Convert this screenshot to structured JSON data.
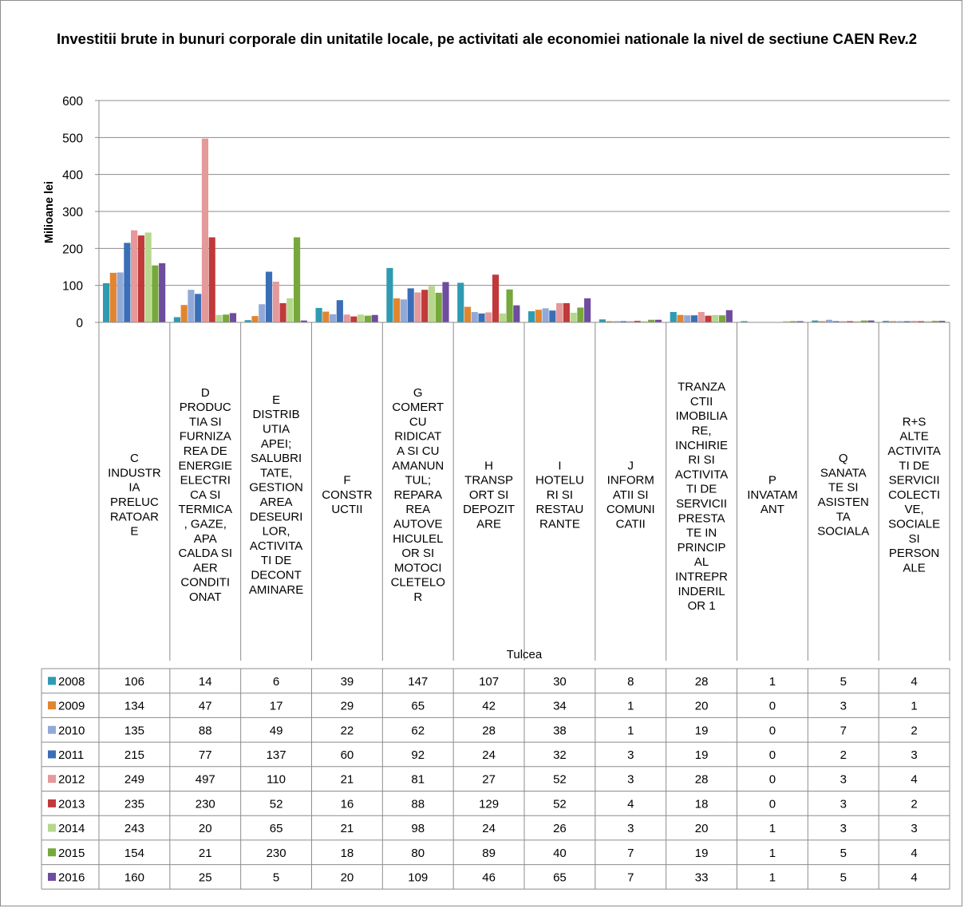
{
  "chart_data": {
    "type": "bar",
    "title": "Investitii brute in bunuri corporale din unitatile locale, pe activitati ale economiei nationale la nivel de sectiune CAEN Rev.2",
    "ylabel": "Milioane lei",
    "xlabel": "Tulcea",
    "ylim": [
      0,
      600
    ],
    "yticks": [
      0,
      100,
      200,
      300,
      400,
      500,
      600
    ],
    "grid": true,
    "legend": "data-table",
    "categories": [
      "C INDUSTRIA PRELUCRATOARE",
      "D PRODUCTIA SI FURNIZAREA DE ENERGIE ELECTRICA SI TERMICA, GAZE, APA CALDA SI AER CONDITIONAT",
      "E DISTRIBUTIA APEI; SALUBRITATE, GESTIONAREA DESEURILOR, ACTIVITATI DE DECONTAMINARE",
      "F CONSTRUCTII",
      "G COMERT CU RIDICATA SI CU AMANUNTUL; REPARAREA AUTOVEHICULELOR SI MOTOCICLETELOR",
      "H TRANSPORT SI DEPOZITARE",
      "I HOTELURI SI RESTAURANTE",
      "J INFORMATII SI COMUNICATII",
      "TRANZACTII IMOBILIARE, INCHIRIERI SI ACTIVITATI DE SERVICII PRESTATE IN PRINCIPAL INTREPRINDERILOR 1",
      "P INVATAMANT",
      "Q SANATATE SI ASISTENTA SOCIALA",
      "R+S ALTE ACTIVITATI DE SERVICII COLECTIVE, SOCIALE SI PERSONALE"
    ],
    "category_lines": [
      [
        "C",
        "INDUSTR",
        "IA",
        "PRELUC",
        "RATOAR",
        "E"
      ],
      [
        "D",
        "PRODUC",
        "TIA SI",
        "FURNIZA",
        "REA DE",
        "ENERGIE",
        "ELECTRI",
        "CA SI",
        "TERMICA",
        ", GAZE,",
        "APA",
        "CALDA SI",
        "AER",
        "CONDITI",
        "ONAT"
      ],
      [
        "E",
        "DISTRIB",
        "UTIA",
        "APEI;",
        "SALUBRI",
        "TATE,",
        "GESTION",
        "AREA",
        "DESEURI",
        "LOR,",
        "ACTIVITA",
        "TI DE",
        "DECONT",
        "AMINARE"
      ],
      [
        "F",
        "CONSTR",
        "UCTII"
      ],
      [
        "G",
        "COMERT",
        "CU",
        "RIDICAT",
        "A SI CU",
        "AMANUN",
        "TUL;",
        "REPARA",
        "REA",
        "AUTOVE",
        "HICULEL",
        "OR SI",
        "MOTOCI",
        "CLETELO",
        "R"
      ],
      [
        "H",
        "TRANSP",
        "ORT SI",
        "DEPOZIT",
        "ARE"
      ],
      [
        "I",
        "HOTELU",
        "RI SI",
        "RESTAU",
        "RANTE"
      ],
      [
        "J",
        "INFORM",
        "ATII SI",
        "COMUNI",
        "CATII"
      ],
      [
        "TRANZA",
        "CTII",
        "IMOBILIA",
        "RE,",
        "INCHIRIE",
        "RI SI",
        "ACTIVITA",
        "TI DE",
        "SERVICII",
        "PRESTA",
        "TE IN",
        "PRINCIP",
        "AL",
        "INTREPR",
        "INDERIL",
        "OR 1"
      ],
      [
        "P",
        "INVATAM",
        "ANT"
      ],
      [
        "Q",
        "SANATA",
        "TE SI",
        "ASISTEN",
        "TA",
        "SOCIALA"
      ],
      [
        "R+S",
        "ALTE",
        "ACTIVITA",
        "TI DE",
        "SERVICII",
        "COLECTI",
        "VE,",
        "SOCIALE",
        "SI",
        "PERSON",
        "ALE"
      ]
    ],
    "series": [
      {
        "name": "2008",
        "color": "#2e9bb2",
        "values": [
          106,
          14,
          6,
          39,
          147,
          107,
          30,
          8,
          28,
          1,
          5,
          4
        ]
      },
      {
        "name": "2009",
        "color": "#e2852f",
        "values": [
          134,
          47,
          17,
          29,
          65,
          42,
          34,
          1,
          20,
          0,
          3,
          1
        ]
      },
      {
        "name": "2010",
        "color": "#92a9d8",
        "values": [
          135,
          88,
          49,
          22,
          62,
          28,
          38,
          1,
          19,
          0,
          7,
          2
        ]
      },
      {
        "name": "2011",
        "color": "#3a6fb8",
        "values": [
          215,
          77,
          137,
          60,
          92,
          24,
          32,
          3,
          19,
          0,
          2,
          3
        ]
      },
      {
        "name": "2012",
        "color": "#e5999a",
        "values": [
          249,
          497,
          110,
          21,
          81,
          27,
          52,
          3,
          28,
          0,
          3,
          4
        ]
      },
      {
        "name": "2013",
        "color": "#c0393b",
        "values": [
          235,
          230,
          52,
          16,
          88,
          129,
          52,
          4,
          18,
          0,
          3,
          2
        ]
      },
      {
        "name": "2014",
        "color": "#b6d88c",
        "values": [
          243,
          20,
          65,
          21,
          98,
          24,
          26,
          3,
          20,
          1,
          3,
          3
        ]
      },
      {
        "name": "2015",
        "color": "#77a83b",
        "values": [
          154,
          21,
          230,
          18,
          80,
          89,
          40,
          7,
          19,
          1,
          5,
          4
        ]
      },
      {
        "name": "2016",
        "color": "#6e4c9e",
        "values": [
          160,
          25,
          5,
          20,
          109,
          46,
          65,
          7,
          33,
          1,
          5,
          4
        ]
      }
    ]
  }
}
